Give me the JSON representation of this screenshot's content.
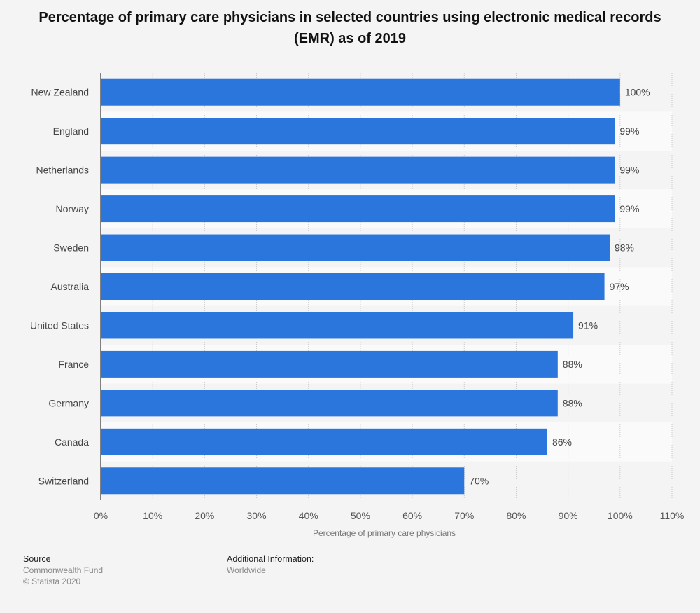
{
  "chart_data": {
    "type": "bar",
    "orientation": "horizontal",
    "title": "Percentage of primary care physicians in selected countries using electronic medical records (EMR) as of 2019",
    "categories": [
      "New Zealand",
      "England",
      "Netherlands",
      "Norway",
      "Sweden",
      "Australia",
      "United States",
      "France",
      "Germany",
      "Canada",
      "Switzerland"
    ],
    "values": [
      100,
      99,
      99,
      99,
      98,
      97,
      91,
      88,
      88,
      86,
      70
    ],
    "value_suffix": "%",
    "xlabel": "Percentage of primary care physicians",
    "xlim": [
      0,
      110
    ],
    "xticks": [
      0,
      10,
      20,
      30,
      40,
      50,
      60,
      70,
      80,
      90,
      100,
      110
    ],
    "tick_suffix": "%",
    "grid": true,
    "bar_color": "#2a76dd"
  },
  "footer": {
    "source_heading": "Source",
    "source_name": "Commonwealth Fund",
    "copyright": "© Statista 2020",
    "info_heading": "Additional Information:",
    "info_text": "Worldwide"
  }
}
